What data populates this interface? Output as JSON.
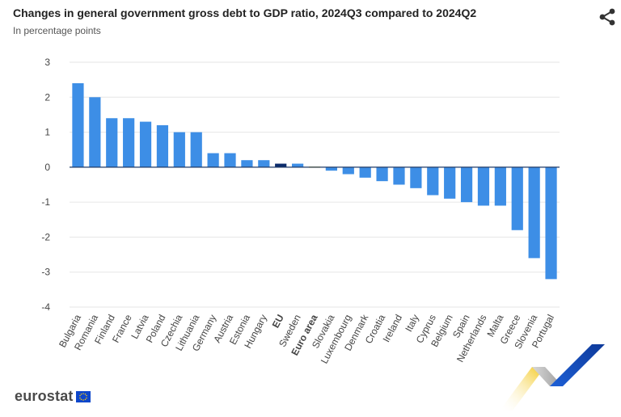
{
  "header": {
    "title": "Changes in general government gross debt to GDP ratio, 2024Q3 compared to 2024Q2",
    "subtitle": "In percentage points",
    "share_icon": "share-icon"
  },
  "footer": {
    "logo_text": "eurostat",
    "flag_icon": "eu-flag-icon"
  },
  "colors": {
    "default_bar": "#3d8ee6",
    "eu_bar": "#0b2b6b",
    "euro_area_bar": "#f3c615",
    "zero_line": "#1f3a66",
    "grid": "#e6e6e6"
  },
  "chart_data": {
    "type": "bar",
    "categories": [
      "Bulgaria",
      "Romania",
      "Finland",
      "France",
      "Latvia",
      "Poland",
      "Czechia",
      "Lithuania",
      "Germany",
      "Austria",
      "Estonia",
      "Hungary",
      "EU",
      "Sweden",
      "Euro area",
      "Slovakia",
      "Luxembourg",
      "Denmark",
      "Croatia",
      "Ireland",
      "Italy",
      "Cyprus",
      "Belgium",
      "Spain",
      "Netherlands",
      "Malta",
      "Greece",
      "Slovenia",
      "Portugal"
    ],
    "values": [
      2.4,
      2.0,
      1.4,
      1.4,
      1.3,
      1.2,
      1.0,
      1.0,
      0.4,
      0.4,
      0.2,
      0.2,
      0.1,
      0.1,
      0.0,
      -0.1,
      -0.2,
      -0.3,
      -0.4,
      -0.5,
      -0.6,
      -0.8,
      -0.9,
      -1.0,
      -1.1,
      -1.1,
      -1.8,
      -2.6,
      -3.2
    ],
    "highlight": {
      "EU": "eu",
      "Euro area": "euro_area"
    },
    "bold_categories": [
      "EU",
      "Euro area"
    ],
    "yticks": [
      "3",
      "2",
      "1",
      "0",
      "-1",
      "-2",
      "-3",
      "-4"
    ],
    "ylim": [
      -4,
      3
    ],
    "grid": true
  }
}
